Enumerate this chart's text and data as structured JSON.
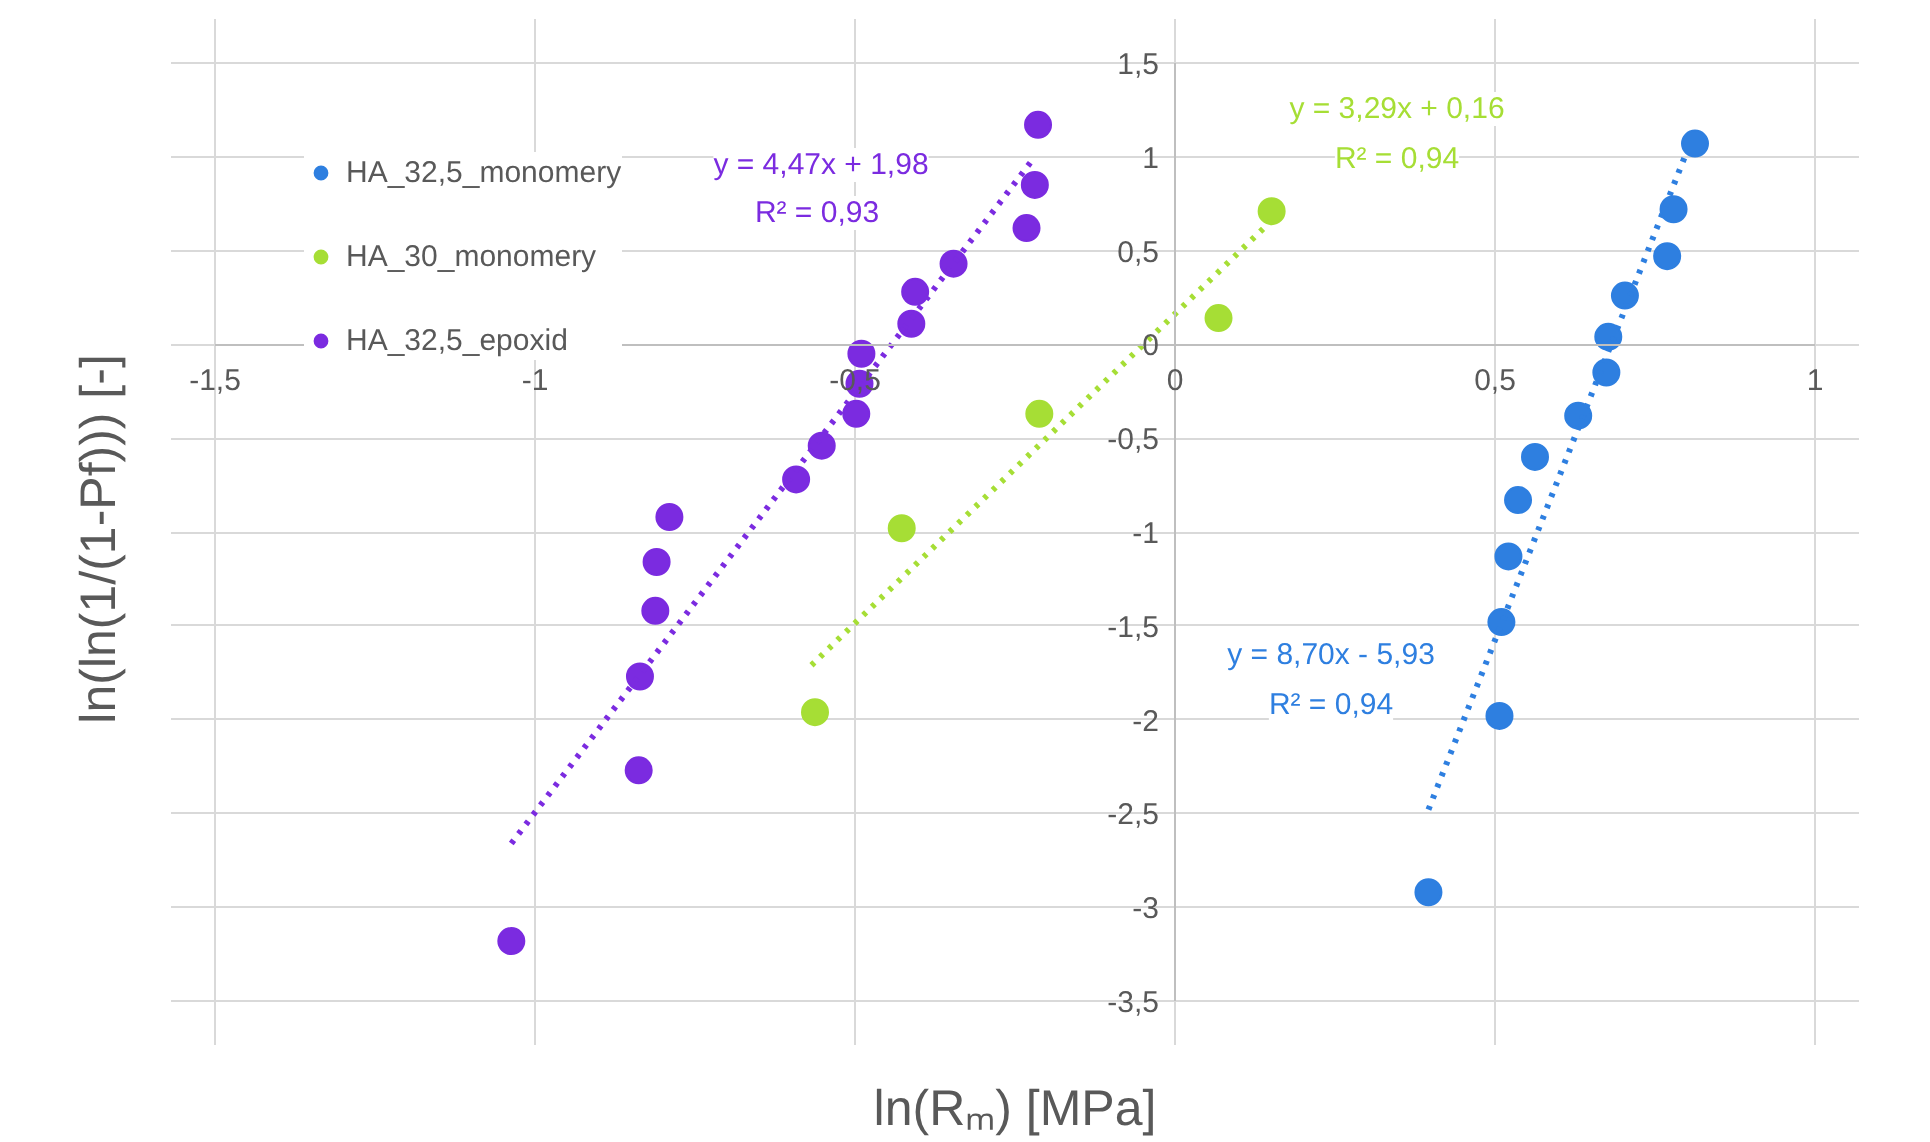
{
  "chart_data": {
    "type": "scatter",
    "xlabel": "ln(Rₘ) [MPa]",
    "ylabel": "ln(ln(1/(1-Pf)))  [-]",
    "xlim": [
      -1.5,
      1
    ],
    "ylim": [
      -3.5,
      1.5
    ],
    "xticks": [
      {
        "value": -1.5,
        "label": "-1,5"
      },
      -1,
      {
        "value": -0.5,
        "label": "-0,5"
      },
      0,
      {
        "value": 0.5,
        "label": "0,5"
      },
      1
    ],
    "yticks": [
      {
        "value": 1.5,
        "label": "1,5"
      },
      1,
      {
        "value": 0.5,
        "label": "0,5"
      },
      0,
      {
        "value": -0.5,
        "label": "-0,5"
      },
      -1,
      {
        "value": -1.5,
        "label": "-1,5"
      },
      -2,
      {
        "value": -2.5,
        "label": "-2,5"
      },
      -3,
      {
        "value": -3.5,
        "label": "-3,5"
      }
    ],
    "grid": true,
    "legend": "top left",
    "series": [
      {
        "name": "HA_32,5_monomery",
        "marker": "circle",
        "color": "#2e7fe0",
        "x": [
          0.8125,
          0.779,
          0.769,
          0.703,
          0.677,
          0.674,
          0.63,
          0.5625,
          0.536,
          0.521,
          0.51,
          0.507,
          0.396
        ],
        "values": [
          1.07,
          0.72,
          0.47,
          0.26,
          0.04,
          -0.15,
          -0.38,
          -0.6,
          -0.83,
          -1.13,
          -1.48,
          -1.98,
          -2.92
        ]
      },
      {
        "name": "HA_30_monomery",
        "marker": "circle",
        "color": "#a6de35",
        "x": [
          0.151,
          0.068,
          -0.212,
          -0.427,
          -0.5625
        ],
        "values": [
          0.71,
          0.14,
          -0.37,
          -0.98,
          -1.96
        ]
      },
      {
        "name": "HA_32,5_epoxid",
        "marker": "circle",
        "color": "#7b2be0",
        "x": [
          -0.214,
          -0.219,
          -0.232,
          -0.346,
          -0.406,
          -0.412,
          -0.49,
          -0.493,
          -0.498,
          -0.552,
          -0.592,
          -0.79,
          -0.81,
          -0.812,
          -0.836,
          -0.838,
          -1.037
        ],
        "values": [
          1.17,
          0.85,
          0.62,
          0.43,
          0.28,
          0.11,
          -0.05,
          -0.21,
          -0.37,
          -0.54,
          -0.72,
          -0.92,
          -1.16,
          -1.42,
          -1.77,
          -2.27,
          -3.18
        ]
      },
      {
        "type": "line",
        "line_style": "dotted",
        "color": "#7b2be0",
        "x": [
          -1.037,
          -0.219
        ],
        "values": [
          -2.66,
          1.0
        ]
      },
      {
        "type": "line",
        "line_style": "dotted",
        "color": "#a6de35",
        "x": [
          -0.568,
          0.151
        ],
        "values": [
          -1.71,
          0.66
        ]
      },
      {
        "type": "line",
        "line_style": "dotted",
        "color": "#2e7fe0",
        "x": [
          0.396,
          0.8
        ],
        "values": [
          -2.48,
          1.03
        ]
      }
    ],
    "annotations": [
      "y = 4,47x + 1,98",
      "R² = 0,93",
      "y = 3,29x + 0,16",
      "R² = 0,94",
      "y = 8,70x - 5,93",
      "R² = 0,94"
    ]
  }
}
